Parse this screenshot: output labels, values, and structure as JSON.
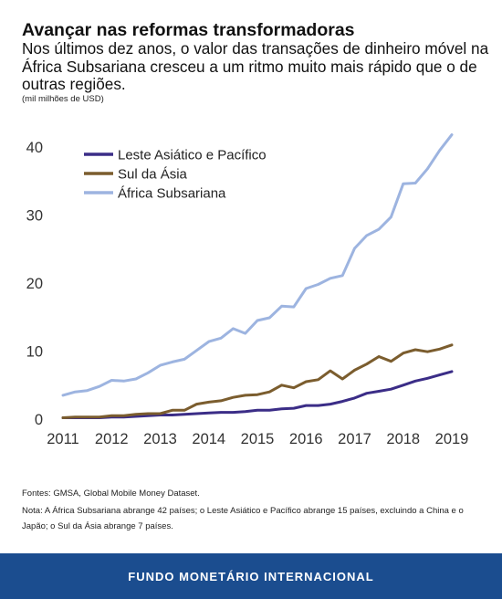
{
  "header": {
    "title": "Avançar nas reformas transformadoras",
    "subtitle": "Nos últimos dez anos, o valor das transações de dinheiro móvel na África Subsariana cresceu a um ritmo muito mais rápido que o de outras regiões.",
    "units": "(mil milhões de USD)"
  },
  "chart_data": {
    "type": "line",
    "title": "",
    "xlabel": "",
    "ylabel": "(mil milhões de USD)",
    "xlim": [
      2011,
      2019
    ],
    "ylim": [
      0,
      42
    ],
    "x_ticks": [
      "2011",
      "2012",
      "2013",
      "2014",
      "2015",
      "2016",
      "2017",
      "2018",
      "2019"
    ],
    "y_ticks": [
      "0",
      "10",
      "20",
      "30",
      "40"
    ],
    "grid": false,
    "legend_position": "top-left",
    "x": [
      2011.0,
      2011.25,
      2011.5,
      2011.75,
      2012.0,
      2012.25,
      2012.5,
      2012.75,
      2013.0,
      2013.25,
      2013.5,
      2013.75,
      2014.0,
      2014.25,
      2014.5,
      2014.75,
      2015.0,
      2015.25,
      2015.5,
      2015.75,
      2016.0,
      2016.25,
      2016.5,
      2016.75,
      2017.0,
      2017.25,
      2017.5,
      2017.75,
      2018.0,
      2018.25,
      2018.5,
      2018.75,
      2019.0
    ],
    "series": [
      {
        "name": "Leste Asiático e Pacífico",
        "color": "#3b2d87",
        "values": [
          0.2,
          0.2,
          0.2,
          0.2,
          0.3,
          0.3,
          0.4,
          0.5,
          0.6,
          0.6,
          0.7,
          0.8,
          0.9,
          1.0,
          1.0,
          1.1,
          1.3,
          1.3,
          1.5,
          1.6,
          2.0,
          2.0,
          2.2,
          2.6,
          3.1,
          3.8,
          4.1,
          4.4,
          5.0,
          5.6,
          6.0,
          6.5,
          7.0
        ]
      },
      {
        "name": "Sul da Ásia",
        "color": "#7b5d2e",
        "values": [
          0.2,
          0.3,
          0.3,
          0.3,
          0.5,
          0.5,
          0.7,
          0.8,
          0.8,
          1.3,
          1.3,
          2.2,
          2.5,
          2.7,
          3.2,
          3.5,
          3.6,
          4.0,
          5.0,
          4.6,
          5.5,
          5.8,
          7.1,
          5.9,
          7.2,
          8.1,
          9.2,
          8.5,
          9.7,
          10.2,
          9.9,
          10.3,
          10.9
        ]
      },
      {
        "name": "África Subsariana",
        "color": "#9db4e0",
        "values": [
          3.5,
          4.0,
          4.2,
          4.8,
          5.7,
          5.6,
          5.9,
          6.8,
          7.9,
          8.4,
          8.8,
          10.1,
          11.4,
          11.9,
          13.3,
          12.6,
          14.5,
          14.9,
          16.6,
          16.5,
          19.2,
          19.8,
          20.7,
          21.1,
          25.1,
          27.0,
          27.9,
          29.7,
          34.6,
          34.7,
          36.8,
          39.5,
          41.8
        ]
      }
    ]
  },
  "notes": {
    "source": "Fontes: GMSA, Global Mobile Money Dataset.",
    "note": "Nota: A África Subsariana abrange 42 países; o Leste Asiático e Pacífico abrange 15 países, excluindo a China e o Japão; o Sul da Ásia abrange 7 países."
  },
  "footer": {
    "label": "FUNDO MONETÁRIO INTERNACIONAL"
  }
}
